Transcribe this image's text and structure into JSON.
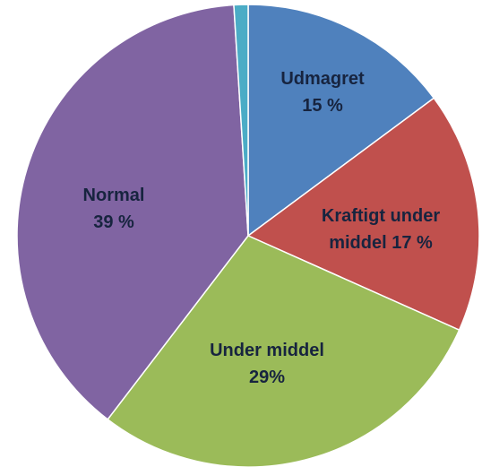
{
  "chart_data": {
    "type": "pie",
    "categories": [
      "Udmagret",
      "Kraftigt under middel",
      "Under middel",
      "Normal",
      null
    ],
    "values": [
      15,
      17,
      29,
      39,
      1
    ],
    "value_labels": [
      "15 %",
      "17 %",
      "29%",
      "39 %",
      null
    ],
    "colors": [
      "#4f81bd",
      "#c0504d",
      "#9bbb59",
      "#8064a2",
      "#4bacc6"
    ]
  }
}
